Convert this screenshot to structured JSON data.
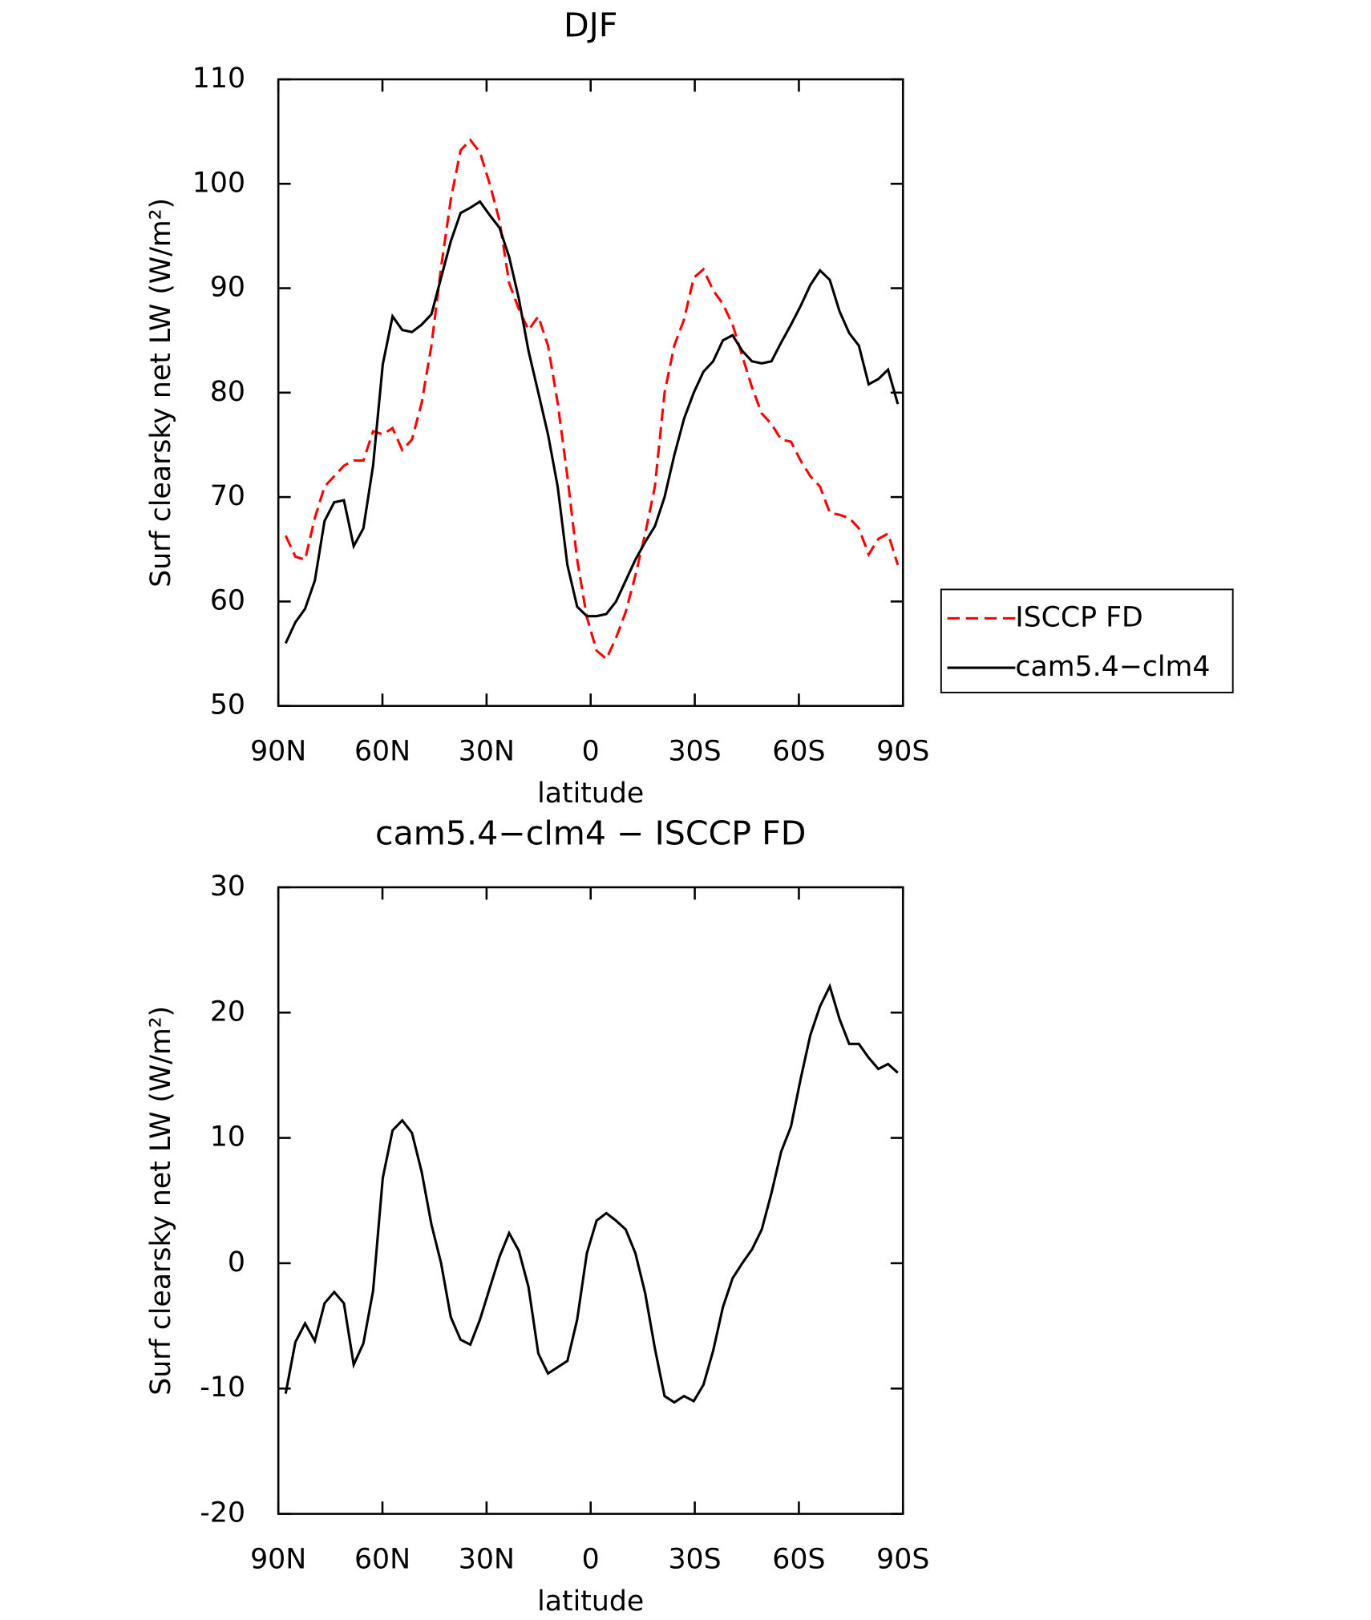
{
  "chart_data": [
    {
      "type": "line",
      "title": "DJF",
      "xlabel": "latitude",
      "ylabel": "Surf clearsky net LW (W/m²)",
      "x": [
        87.9,
        85.1,
        82.3,
        79.5,
        76.7,
        73.9,
        71.1,
        68.3,
        65.5,
        62.7,
        59.9,
        57.1,
        54.3,
        51.5,
        48.7,
        45.9,
        43.1,
        40.3,
        37.5,
        34.7,
        31.9,
        29.1,
        26.3,
        23.5,
        20.7,
        17.9,
        15.1,
        12.3,
        9.5,
        6.7,
        3.9,
        1.1,
        -1.7,
        -4.5,
        -7.3,
        -10.1,
        -12.9,
        -15.7,
        -18.5,
        -21.3,
        -24.1,
        -26.9,
        -29.7,
        -32.5,
        -35.3,
        -38.1,
        -40.9,
        -43.7,
        -46.5,
        -49.3,
        -52.1,
        -54.9,
        -57.7,
        -60.5,
        -63.3,
        -66.1,
        -68.9,
        -71.7,
        -74.5,
        -77.3,
        -80.1,
        -82.9,
        -85.7,
        -88.5
      ],
      "series": [
        {
          "name": "ISCCP FD",
          "color": "#ff0000",
          "dashed": true,
          "values": [
            66.3,
            64.3,
            64,
            68,
            71,
            72,
            73,
            73.5,
            73.5,
            76.3,
            76,
            76.6,
            74.5,
            75.5,
            79,
            84.5,
            92,
            98.5,
            103.2,
            104.2,
            103,
            100,
            96.5,
            90.5,
            88,
            86,
            87.3,
            84.5,
            79,
            72,
            64,
            58.5,
            55.3,
            54.5,
            56.5,
            59,
            62.5,
            66.5,
            71,
            80,
            84.5,
            87,
            91,
            91.8,
            89.8,
            88.5,
            86.5,
            83.5,
            80.5,
            78,
            77,
            75.5,
            75.3,
            73.5,
            72,
            71,
            68.5,
            68.3,
            68,
            67,
            64.5,
            66,
            66.5,
            63.5
          ]
        },
        {
          "name": "cam5.4−clm4",
          "color": "#000000",
          "dashed": false,
          "values": [
            56,
            58,
            59.3,
            62,
            67.7,
            69.5,
            69.7,
            65.3,
            67,
            73,
            82.7,
            87.3,
            86,
            85.8,
            86.5,
            87.5,
            91,
            94.5,
            97.2,
            97.7,
            98.3,
            97,
            95.8,
            93,
            89,
            84,
            80,
            76,
            71,
            63.5,
            59.5,
            58.6,
            58.6,
            58.8,
            60,
            62,
            64,
            65.7,
            67.2,
            70,
            74,
            77.5,
            80,
            82,
            83,
            85,
            85.5,
            84,
            83,
            82.8,
            83,
            84.8,
            86.5,
            88.3,
            90.3,
            91.7,
            90.8,
            87.8,
            85.7,
            84.5,
            80.8,
            81.3,
            82.2,
            78.9
          ]
        }
      ],
      "xlim": [
        90,
        -90
      ],
      "xticks": [
        {
          "value": 90,
          "label": "90N"
        },
        {
          "value": 60,
          "label": "60N"
        },
        {
          "value": 30,
          "label": "30N"
        },
        0,
        {
          "value": -30,
          "label": "30S"
        },
        {
          "value": -60,
          "label": "60S"
        },
        {
          "value": -90,
          "label": "90S"
        }
      ],
      "ylim": [
        50,
        110
      ],
      "yticks": [
        50,
        60,
        70,
        80,
        90,
        100,
        110
      ],
      "legend": "right"
    },
    {
      "type": "line",
      "title": "cam5.4−clm4 − ISCCP FD",
      "xlabel": "latitude",
      "ylabel": "Surf clearsky net LW (W/m²)",
      "x": [
        87.9,
        85.1,
        82.3,
        79.5,
        76.7,
        73.9,
        71.1,
        68.3,
        65.5,
        62.7,
        59.9,
        57.1,
        54.3,
        51.5,
        48.7,
        45.9,
        43.1,
        40.3,
        37.5,
        34.7,
        31.9,
        29.1,
        26.3,
        23.5,
        20.7,
        17.9,
        15.1,
        12.3,
        9.5,
        6.7,
        3.9,
        1.1,
        -1.7,
        -4.5,
        -7.3,
        -10.1,
        -12.9,
        -15.7,
        -18.5,
        -21.3,
        -24.1,
        -26.9,
        -29.7,
        -32.5,
        -35.3,
        -38.1,
        -40.9,
        -43.7,
        -46.5,
        -49.3,
        -52.1,
        -54.9,
        -57.7,
        -60.5,
        -63.3,
        -66.1,
        -68.9,
        -71.7,
        -74.5,
        -77.3,
        -80.1,
        -82.9,
        -85.7,
        -88.5
      ],
      "series": [
        {
          "color": "#000000",
          "dashed": false,
          "values": [
            -10.4,
            -6.3,
            -4.8,
            -6.2,
            -3.2,
            -2.3,
            -3.2,
            -8.1,
            -6.4,
            -2.2,
            6.8,
            10.6,
            11.4,
            10.4,
            7.3,
            3.1,
            0,
            -4.3,
            -6.1,
            -6.5,
            -4.5,
            -2,
            0.5,
            2.4,
            1,
            -1.9,
            -7.2,
            -8.8,
            -8.3,
            -7.8,
            -4.5,
            0.8,
            3.4,
            4,
            3.4,
            2.7,
            0.8,
            -2.4,
            -6.8,
            -10.6,
            -11.1,
            -10.6,
            -11,
            -9.7,
            -7,
            -3.5,
            -1.2,
            0,
            1.1,
            2.7,
            5.6,
            8.9,
            10.9,
            14.7,
            18.2,
            20.5,
            22.1,
            19.5,
            17.5,
            17.5,
            16.4,
            15.5,
            15.9,
            15.2
          ]
        }
      ],
      "xlim": [
        90,
        -90
      ],
      "xticks": [
        {
          "value": 90,
          "label": "90N"
        },
        {
          "value": 60,
          "label": "60N"
        },
        {
          "value": 30,
          "label": "30N"
        },
        0,
        {
          "value": -30,
          "label": "30S"
        },
        {
          "value": -60,
          "label": "60S"
        },
        {
          "value": -90,
          "label": "90S"
        }
      ],
      "ylim": [
        -20,
        30
      ],
      "yticks": [
        -20,
        -10,
        0,
        10,
        20,
        30
      ]
    }
  ]
}
